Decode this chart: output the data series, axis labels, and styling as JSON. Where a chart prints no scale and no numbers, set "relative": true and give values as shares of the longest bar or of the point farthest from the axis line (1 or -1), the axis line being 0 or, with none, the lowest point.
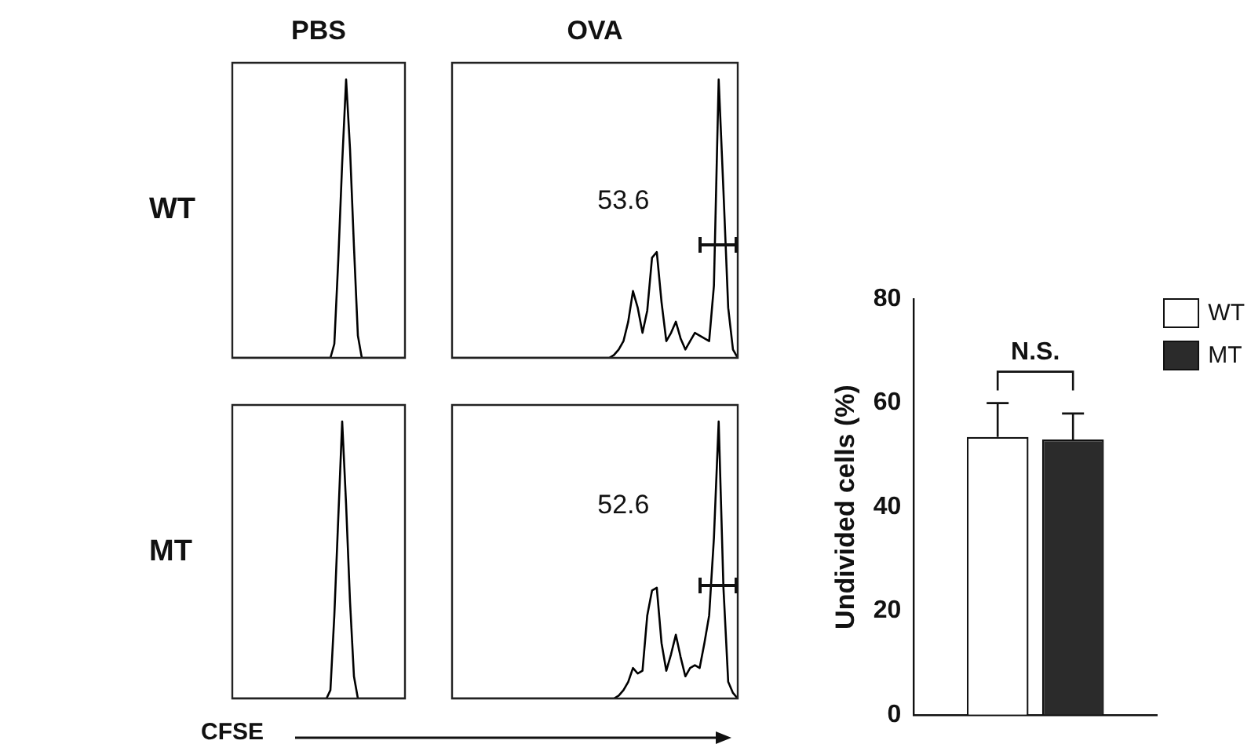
{
  "chart_data": [
    {
      "type": "line",
      "title": "PBS",
      "ylabel": "WT",
      "relative": true,
      "tick_labels": false,
      "marker": "none",
      "color": "#000000",
      "categories": [
        null,
        null,
        null,
        null,
        null,
        null,
        null,
        null,
        null,
        null,
        null,
        null,
        null,
        null,
        null,
        null,
        null,
        null,
        null,
        null,
        null,
        null,
        null,
        null,
        null,
        null,
        null,
        null,
        null,
        null,
        null,
        null,
        null,
        null,
        null,
        null,
        null,
        null,
        null,
        null,
        null,
        null,
        null,
        null,
        null
      ],
      "values": [
        0,
        0,
        0,
        0,
        0,
        0,
        0,
        0,
        0,
        0,
        0,
        0,
        0,
        0,
        0,
        0,
        0,
        0,
        0,
        0,
        0,
        0,
        0,
        0,
        0,
        0,
        0.05,
        0.35,
        0.7,
        1,
        0.75,
        0.4,
        0.08,
        0,
        0,
        0,
        0,
        0,
        0,
        0,
        0,
        0,
        0,
        0,
        0
      ]
    },
    {
      "type": "line",
      "title": "OVA",
      "relative": true,
      "tick_labels": false,
      "marker": "none",
      "color": "#000000",
      "annotations": [
        "53.6"
      ],
      "categories": [
        null,
        null,
        null,
        null,
        null,
        null,
        null,
        null,
        null,
        null,
        null,
        null,
        null,
        null,
        null,
        null,
        null,
        null,
        null,
        null,
        null,
        null,
        null,
        null,
        null,
        null,
        null,
        null,
        null,
        null,
        null,
        null,
        null,
        null,
        null,
        null,
        null,
        null,
        null,
        null,
        null,
        null,
        null,
        null,
        null,
        null,
        null,
        null,
        null,
        null,
        null,
        null,
        null,
        null,
        null,
        null,
        null,
        null,
        null,
        null,
        null
      ],
      "values": [
        0,
        0,
        0,
        0,
        0,
        0,
        0,
        0,
        0,
        0,
        0,
        0,
        0,
        0,
        0,
        0,
        0,
        0,
        0,
        0,
        0,
        0,
        0,
        0,
        0,
        0,
        0,
        0,
        0,
        0,
        0,
        0,
        0,
        0,
        0.01,
        0.03,
        0.06,
        0.13,
        0.24,
        0.18,
        0.09,
        0.17,
        0.36,
        0.38,
        0.2,
        0.06,
        0.09,
        0.13,
        0.07,
        0.03,
        0.06,
        0.09,
        0.08,
        0.07,
        0.06,
        0.26,
        1,
        0.6,
        0.18,
        0.03,
        0
      ]
    },
    {
      "type": "line",
      "ylabel": "MT",
      "xlabel": "CFSE",
      "relative": true,
      "tick_labels": false,
      "marker": "none",
      "color": "#000000",
      "categories": [
        null,
        null,
        null,
        null,
        null,
        null,
        null,
        null,
        null,
        null,
        null,
        null,
        null,
        null,
        null,
        null,
        null,
        null,
        null,
        null,
        null,
        null,
        null,
        null,
        null,
        null,
        null,
        null,
        null,
        null,
        null,
        null,
        null,
        null,
        null,
        null,
        null,
        null,
        null,
        null,
        null,
        null,
        null,
        null,
        null
      ],
      "values": [
        0,
        0,
        0,
        0,
        0,
        0,
        0,
        0,
        0,
        0,
        0,
        0,
        0,
        0,
        0,
        0,
        0,
        0,
        0,
        0,
        0,
        0,
        0,
        0,
        0,
        0.03,
        0.3,
        0.65,
        1,
        0.7,
        0.35,
        0.08,
        0,
        0,
        0,
        0,
        0,
        0,
        0,
        0,
        0,
        0,
        0,
        0,
        0
      ]
    },
    {
      "type": "line",
      "relative": true,
      "tick_labels": false,
      "marker": "none",
      "color": "#000000",
      "annotations": [
        "52.6"
      ],
      "categories": [
        null,
        null,
        null,
        null,
        null,
        null,
        null,
        null,
        null,
        null,
        null,
        null,
        null,
        null,
        null,
        null,
        null,
        null,
        null,
        null,
        null,
        null,
        null,
        null,
        null,
        null,
        null,
        null,
        null,
        null,
        null,
        null,
        null,
        null,
        null,
        null,
        null,
        null,
        null,
        null,
        null,
        null,
        null,
        null,
        null,
        null,
        null,
        null,
        null,
        null,
        null,
        null,
        null,
        null,
        null,
        null,
        null,
        null,
        null,
        null,
        null
      ],
      "values": [
        0,
        0,
        0,
        0,
        0,
        0,
        0,
        0,
        0,
        0,
        0,
        0,
        0,
        0,
        0,
        0,
        0,
        0,
        0,
        0,
        0,
        0,
        0,
        0,
        0,
        0,
        0,
        0,
        0,
        0,
        0,
        0,
        0,
        0,
        0,
        0.01,
        0.03,
        0.06,
        0.11,
        0.09,
        0.1,
        0.3,
        0.39,
        0.4,
        0.2,
        0.1,
        0.16,
        0.23,
        0.15,
        0.08,
        0.11,
        0.12,
        0.11,
        0.2,
        0.3,
        0.58,
        1,
        0.4,
        0.06,
        0.02,
        0
      ]
    },
    {
      "type": "bar",
      "ylabel": "Undivided cells (%)",
      "ylim": [
        0,
        80
      ],
      "yticks": [
        0,
        20,
        40,
        60,
        80
      ],
      "legend": "top right",
      "tick_labels": "y",
      "annotations": [
        "N.S."
      ],
      "categories": [
        null
      ],
      "series": [
        {
          "name": "WT",
          "color": "#ffffff",
          "values": [
            53.5
          ],
          "errors": [
            [
              53.5,
              60
            ]
          ]
        },
        {
          "name": "MT",
          "color": "#2b2b2b",
          "values": [
            53
          ],
          "errors": [
            [
              53,
              58
            ]
          ]
        }
      ]
    }
  ]
}
